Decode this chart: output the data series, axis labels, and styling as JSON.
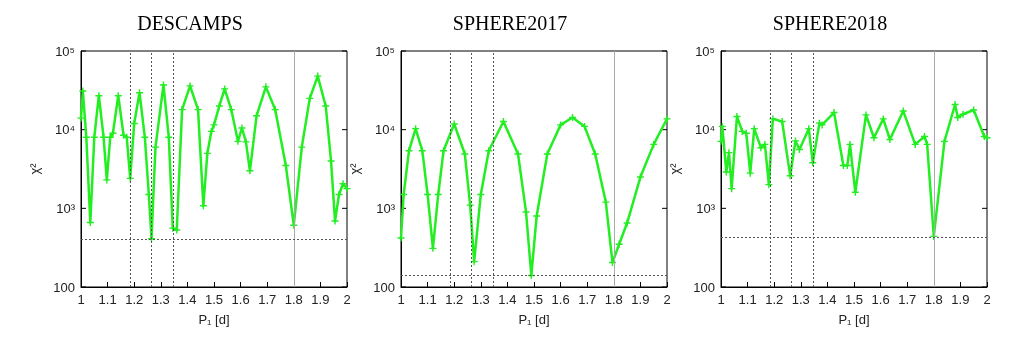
{
  "chart_data": [
    {
      "type": "line",
      "title": "DESCAMPS",
      "xlabel": "P₁ [d]",
      "ylabel": "χ²",
      "log": "y",
      "grid": false,
      "marker": "cross",
      "line_style": "solid",
      "xlim": [
        1,
        2
      ],
      "xticks": [
        1,
        1.1,
        1.2,
        1.3,
        1.4,
        1.5,
        1.6,
        1.7,
        1.8,
        1.9,
        2
      ],
      "ylim": [
        100,
        100000
      ],
      "yticks": [
        {
          "value": 100,
          "label": "100"
        },
        {
          "value": 1000,
          "label": "10³"
        },
        {
          "value": 10000,
          "label": "10⁴"
        },
        {
          "value": 100000,
          "label": "10⁵"
        }
      ],
      "ref_lines": [
        {
          "axis": "x",
          "value": 1.185,
          "color": "#555555",
          "line_style": "dotted"
        },
        {
          "axis": "x",
          "value": 1.265,
          "color": "#555555",
          "line_style": "dotted"
        },
        {
          "axis": "x",
          "value": 1.345,
          "color": "#555555",
          "line_style": "dotted"
        },
        {
          "axis": "x",
          "value": 1.8,
          "color": "#aaaaaa",
          "line_style": "solid"
        },
        {
          "axis": "y",
          "value": 400,
          "color": "#555555",
          "line_style": "dotted"
        }
      ],
      "series": [
        {
          "color": "#22ee22",
          "x": [
            1.0,
            1.007,
            1.02,
            1.035,
            1.05,
            1.067,
            1.085,
            1.097,
            1.11,
            1.12,
            1.14,
            1.16,
            1.172,
            1.185,
            1.2,
            1.22,
            1.24,
            1.255,
            1.265,
            1.28,
            1.31,
            1.33,
            1.345,
            1.36,
            1.38,
            1.41,
            1.44,
            1.46,
            1.475,
            1.49,
            1.5,
            1.52,
            1.54,
            1.565,
            1.59,
            1.605,
            1.62,
            1.635,
            1.66,
            1.695,
            1.73,
            1.77,
            1.8,
            1.83,
            1.86,
            1.89,
            1.92,
            1.94,
            1.955,
            1.97,
            1.985,
            2.0
          ],
          "values": [
            14000,
            31000,
            8000,
            660,
            8000,
            27000,
            8000,
            2300,
            8000,
            9000,
            27000,
            8500,
            8000,
            2400,
            12000,
            29500,
            8000,
            1500,
            410,
            6000,
            37000,
            8000,
            560,
            530,
            18000,
            36000,
            18000,
            1080,
            5000,
            9500,
            11500,
            20000,
            33000,
            18000,
            7100,
            10500,
            7000,
            3000,
            15000,
            35000,
            18000,
            3500,
            610,
            6000,
            25000,
            48000,
            20000,
            4000,
            690,
            1500,
            2050,
            1780
          ]
        }
      ]
    },
    {
      "type": "line",
      "title": "SPHERE2017",
      "xlabel": "P₁ [d]",
      "ylabel": "χ²",
      "log": "y",
      "grid": false,
      "marker": "cross",
      "line_style": "solid",
      "xlim": [
        1,
        2
      ],
      "xticks": [
        1,
        1.1,
        1.2,
        1.3,
        1.4,
        1.5,
        1.6,
        1.7,
        1.8,
        1.9,
        2
      ],
      "ylim": [
        100,
        100000
      ],
      "yticks": [
        {
          "value": 100,
          "label": "100"
        },
        {
          "value": 1000,
          "label": "10³"
        },
        {
          "value": 10000,
          "label": "10⁴"
        },
        {
          "value": 100000,
          "label": "10⁵"
        }
      ],
      "ref_lines": [
        {
          "axis": "x",
          "value": 1.185,
          "color": "#555555",
          "line_style": "dotted"
        },
        {
          "axis": "x",
          "value": 1.265,
          "color": "#555555",
          "line_style": "dotted"
        },
        {
          "axis": "x",
          "value": 1.345,
          "color": "#555555",
          "line_style": "dotted"
        },
        {
          "axis": "x",
          "value": 1.8,
          "color": "#aaaaaa",
          "line_style": "solid"
        },
        {
          "axis": "y",
          "value": 140,
          "color": "#555555",
          "line_style": "dotted"
        }
      ],
      "series": [
        {
          "color": "#22ee22",
          "x": [
            1.0,
            1.01,
            1.03,
            1.055,
            1.08,
            1.1,
            1.12,
            1.14,
            1.16,
            1.2,
            1.24,
            1.26,
            1.275,
            1.3,
            1.33,
            1.385,
            1.44,
            1.47,
            1.49,
            1.51,
            1.55,
            1.6,
            1.645,
            1.69,
            1.73,
            1.77,
            1.795,
            1.82,
            1.85,
            1.9,
            1.95,
            2.0
          ],
          "values": [
            420,
            1500,
            5400,
            10300,
            5400,
            1500,
            310,
            1500,
            5400,
            11800,
            4900,
            1100,
            210,
            1500,
            5400,
            12700,
            4900,
            900,
            140,
            800,
            4900,
            11500,
            14300,
            11000,
            4900,
            1200,
            205,
            350,
            650,
            2500,
            6500,
            13700
          ]
        }
      ]
    },
    {
      "type": "line",
      "title": "SPHERE2018",
      "xlabel": "P₁ [d]",
      "ylabel": "χ²",
      "log": "y",
      "grid": false,
      "marker": "cross",
      "line_style": "solid",
      "xlim": [
        1,
        2
      ],
      "xticks": [
        1,
        1.1,
        1.2,
        1.3,
        1.4,
        1.5,
        1.6,
        1.7,
        1.8,
        1.9,
        2
      ],
      "ylim": [
        100,
        100000
      ],
      "yticks": [
        {
          "value": 100,
          "label": "100"
        },
        {
          "value": 1000,
          "label": "10³"
        },
        {
          "value": 10000,
          "label": "10⁴"
        },
        {
          "value": 100000,
          "label": "10⁵"
        }
      ],
      "ref_lines": [
        {
          "axis": "x",
          "value": 1.185,
          "color": "#555555",
          "line_style": "dotted"
        },
        {
          "axis": "x",
          "value": 1.265,
          "color": "#555555",
          "line_style": "dotted"
        },
        {
          "axis": "x",
          "value": 1.345,
          "color": "#555555",
          "line_style": "dotted"
        },
        {
          "axis": "x",
          "value": 1.8,
          "color": "#aaaaaa",
          "line_style": "solid"
        },
        {
          "axis": "y",
          "value": 430,
          "color": "#555555",
          "line_style": "dotted"
        }
      ],
      "series": [
        {
          "color": "#22ee22",
          "x": [
            1.0,
            1.005,
            1.02,
            1.03,
            1.04,
            1.06,
            1.08,
            1.095,
            1.11,
            1.125,
            1.15,
            1.165,
            1.18,
            1.195,
            1.23,
            1.26,
            1.28,
            1.295,
            1.33,
            1.345,
            1.37,
            1.38,
            1.425,
            1.46,
            1.475,
            1.485,
            1.505,
            1.545,
            1.575,
            1.61,
            1.635,
            1.685,
            1.73,
            1.765,
            1.775,
            1.8,
            1.84,
            1.88,
            1.89,
            1.91,
            1.95,
            1.99,
            2.0
          ],
          "values": [
            7100,
            11000,
            2900,
            5100,
            1780,
            14700,
            9500,
            9000,
            2800,
            10300,
            5900,
            6500,
            2000,
            13700,
            12700,
            2600,
            7200,
            5600,
            10300,
            3800,
            12100,
            11500,
            16500,
            3500,
            3500,
            6500,
            1600,
            15400,
            7900,
            13700,
            7500,
            17300,
            6500,
            8200,
            6500,
            440,
            7100,
            20900,
            14300,
            15700,
            17800,
            8200,
            7900
          ]
        }
      ]
    }
  ]
}
